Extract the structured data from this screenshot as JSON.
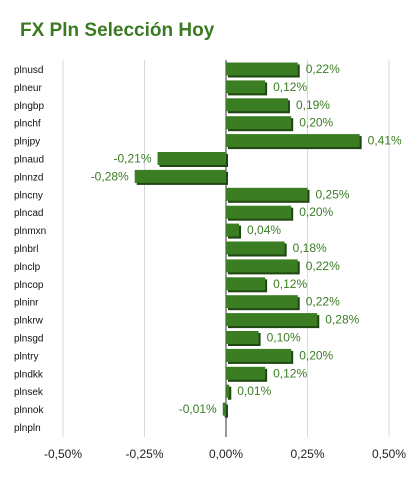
{
  "chart_data": {
    "type": "bar",
    "orientation": "horizontal",
    "title": "FX Pln Selección Hoy",
    "categories": [
      "plnusd",
      "plneur",
      "plngbp",
      "plnchf",
      "plnjpy",
      "plnaud",
      "plnnzd",
      "plncny",
      "plncad",
      "plnmxn",
      "plnbrl",
      "plnclp",
      "plncop",
      "plninr",
      "plnkrw",
      "plnsgd",
      "plntry",
      "plndkk",
      "plnsek",
      "plnnok",
      "plnpln"
    ],
    "values": [
      0.22,
      0.12,
      0.19,
      0.2,
      0.41,
      -0.21,
      -0.28,
      0.25,
      0.2,
      0.04,
      0.18,
      0.22,
      0.12,
      0.22,
      0.28,
      0.1,
      0.2,
      0.12,
      0.01,
      -0.01,
      0.0
    ],
    "value_labels": [
      "0,22%",
      "0,12%",
      "0,19%",
      "0,20%",
      "0,41%",
      "-0,21%",
      "-0,28%",
      "0,25%",
      "0,20%",
      "0,04%",
      "0,18%",
      "0,22%",
      "0,12%",
      "0,22%",
      "0,28%",
      "0,10%",
      "0,20%",
      "0,12%",
      "0,01%",
      "-0,01%",
      ""
    ],
    "xlim": [
      -0.5,
      0.5
    ],
    "xticks": [
      -0.5,
      -0.25,
      0.0,
      0.25,
      0.5
    ],
    "xtick_labels": [
      "-0,50%",
      "-0,25%",
      "0,00%",
      "0,25%",
      "0,50%"
    ],
    "grid": true,
    "legend": "none",
    "colors": {
      "bar": "#3a7d23",
      "bar_dark": "#1f4712",
      "label": "#3a7d23",
      "title": "#3c7a22",
      "grid": "#d9d9d9"
    }
  }
}
